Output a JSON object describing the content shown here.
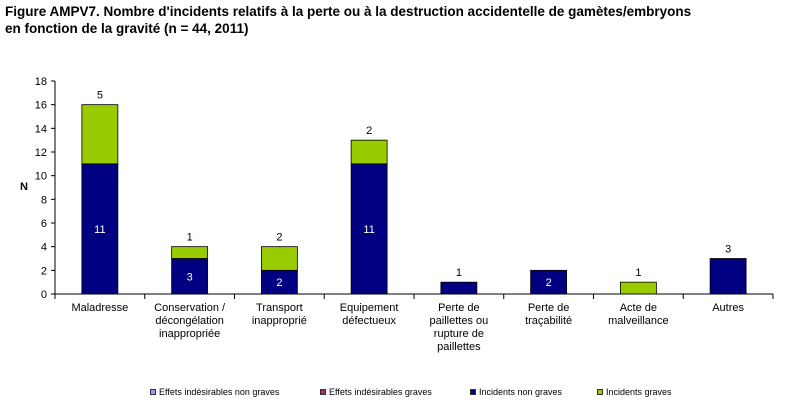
{
  "title_line1": "Figure AMPV7. Nombre d'incidents relatifs à la perte ou à la destruction accidentelle de gamètes/embryons",
  "title_line2": "en fonction de la gravité (n = 44, 2011)",
  "chart_data": {
    "type": "bar",
    "stacked": true,
    "title": "Figure AMPV7. Nombre d'incidents relatifs à la perte ou à la destruction accidentelle de gamètes/embryons en fonction de la gravité (n = 44, 2011)",
    "ylabel": "N",
    "xlabel": "",
    "ylim": [
      0,
      18
    ],
    "yticks": [
      0,
      2,
      4,
      6,
      8,
      10,
      12,
      14,
      16,
      18
    ],
    "categories": [
      "Maladresse",
      "Conservation / décongélation inappropriée",
      "Transport inapproprié",
      "Equipement défectueux",
      "Perte de paillettes ou rupture de paillettes",
      "Perte de traçabilité",
      "Acte de malveillance",
      "Autres"
    ],
    "category_lines": [
      [
        "Maladresse"
      ],
      [
        "Conservation /",
        "décongélation",
        "inappropriée"
      ],
      [
        "Transport",
        "inapproprié"
      ],
      [
        "Equipement",
        "défectueux"
      ],
      [
        "Perte de",
        "paillettes ou",
        "rupture de",
        "paillettes"
      ],
      [
        "Perte de",
        "traçabilité"
      ],
      [
        "Acte de",
        "malveillance"
      ],
      [
        "Autres"
      ]
    ],
    "series": [
      {
        "name": "Effets indésirables non graves",
        "color": "#9999ff",
        "values": [
          0,
          0,
          0,
          0,
          0,
          0,
          0,
          0
        ]
      },
      {
        "name": "Effets indésirables graves",
        "color": "#993366",
        "values": [
          0,
          0,
          0,
          0,
          0,
          0,
          0,
          0
        ]
      },
      {
        "name": "Incidents non graves",
        "color": "#000080",
        "values": [
          11,
          3,
          2,
          11,
          1,
          2,
          0,
          3
        ],
        "labels": [
          "11",
          "3",
          "2",
          "11",
          "1",
          "2",
          "",
          "3"
        ],
        "label_pos": [
          "inside",
          "inside",
          "inside",
          "inside",
          "above",
          "inside",
          "",
          "above"
        ]
      },
      {
        "name": "Incidents graves",
        "color": "#99cc00",
        "values": [
          5,
          1,
          2,
          2,
          0,
          0,
          1,
          0
        ],
        "labels": [
          "5",
          "1",
          "2",
          "2",
          "",
          "",
          "1",
          ""
        ],
        "label_pos": [
          "above",
          "above",
          "above",
          "above",
          "",
          "",
          "above",
          ""
        ]
      }
    ],
    "grid": false,
    "legend_position": "bottom"
  }
}
